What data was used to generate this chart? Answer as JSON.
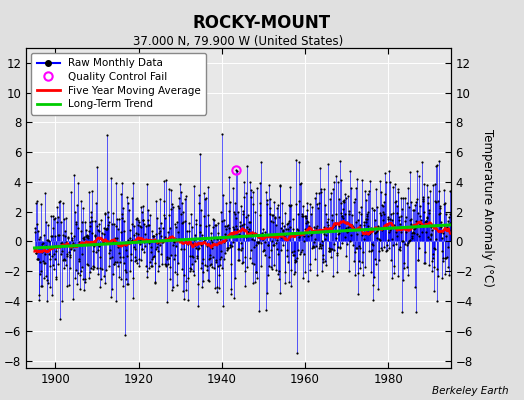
{
  "title": "ROCKY-MOUNT",
  "subtitle": "37.000 N, 79.900 W (United States)",
  "ylabel": "Temperature Anomaly (°C)",
  "credit": "Berkeley Earth",
  "xlim": [
    1893,
    1995
  ],
  "ylim": [
    -8.5,
    13
  ],
  "yticks": [
    -8,
    -6,
    -4,
    -2,
    0,
    2,
    4,
    6,
    8,
    10,
    12
  ],
  "xticks": [
    1900,
    1920,
    1940,
    1960,
    1980
  ],
  "bg_color": "#e0e0e0",
  "plot_bg_color": "#e8e8e8",
  "grid_color": "#ffffff",
  "line_color": "#0000ff",
  "dot_color": "#000000",
  "ma_color": "#ff0000",
  "trend_color": "#00cc00",
  "qc_color": "#ff00ff",
  "seed": 42,
  "n_years": 100,
  "start_year": 1895,
  "ma_window": 60,
  "qc_year": 1943,
  "qc_month": 5,
  "qc_value": 4.8,
  "spike_year_idx": 540,
  "spike_value": 7.2,
  "spike2_year_idx": 756,
  "spike2_value": -7.5
}
